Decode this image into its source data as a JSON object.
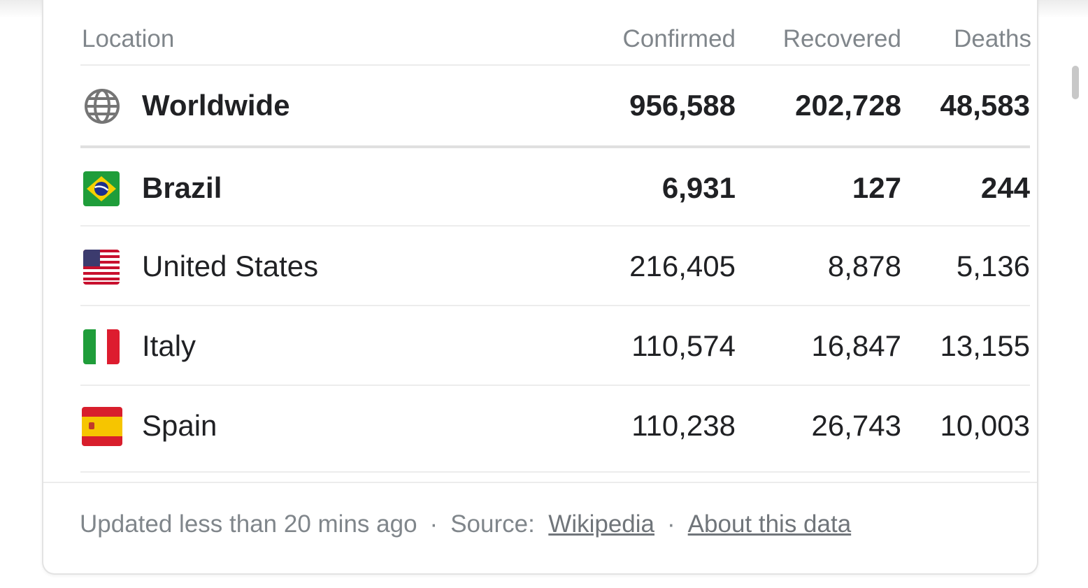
{
  "table": {
    "headers": {
      "location": "Location",
      "confirmed": "Confirmed",
      "recovered": "Recovered",
      "deaths": "Deaths"
    },
    "rows": [
      {
        "location": "Worldwide",
        "confirmed": "956,588",
        "recovered": "202,728",
        "deaths": "48,583",
        "icon": "globe-icon"
      },
      {
        "location": "Brazil",
        "confirmed": "6,931",
        "recovered": "127",
        "deaths": "244",
        "icon": "brazil-flag-icon"
      },
      {
        "location": "United States",
        "confirmed": "216,405",
        "recovered": "8,878",
        "deaths": "5,136",
        "icon": "us-flag-icon"
      },
      {
        "location": "Italy",
        "confirmed": "110,574",
        "recovered": "16,847",
        "deaths": "13,155",
        "icon": "italy-flag-icon"
      },
      {
        "location": "Spain",
        "confirmed": "110,238",
        "recovered": "26,743",
        "deaths": "10,003",
        "icon": "spain-flag-icon"
      }
    ]
  },
  "footer": {
    "updated": "Updated less than 20 mins ago",
    "separator": "·",
    "source_label": "Source:",
    "source_link": "Wikipedia",
    "about_link": "About this data"
  },
  "colors": {
    "text": "#202124",
    "muted": "#80868b",
    "divider": "#ececec"
  }
}
